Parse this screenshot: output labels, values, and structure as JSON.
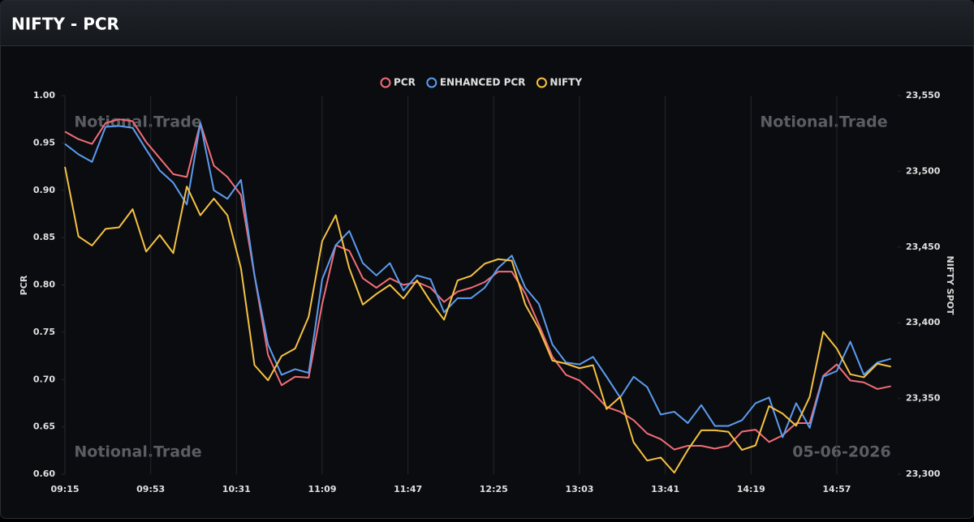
{
  "chart_data": {
    "type": "line",
    "title": "NIFTY - PCR",
    "ylabel": "PCR",
    "y2label": "NIFTY SPOT",
    "annotations": [
      "Notional.Trade",
      "Notional.Trade",
      "Notional.Trade",
      "05-06-2026"
    ],
    "x": [
      "09:15",
      "09:21",
      "09:27",
      "09:33",
      "09:39",
      "09:45",
      "09:51",
      "09:57",
      "10:03",
      "10:09",
      "10:15",
      "10:21",
      "10:27",
      "10:33",
      "10:39",
      "10:45",
      "10:51",
      "10:57",
      "11:03",
      "11:09",
      "11:15",
      "11:21",
      "11:27",
      "11:33",
      "11:39",
      "11:45",
      "11:51",
      "11:57",
      "12:03",
      "12:09",
      "12:15",
      "12:21",
      "12:27",
      "12:33",
      "12:39",
      "12:45",
      "12:51",
      "12:57",
      "13:03",
      "13:09",
      "13:15",
      "13:21",
      "13:27",
      "13:33",
      "13:39",
      "13:45",
      "13:51",
      "13:57",
      "14:03",
      "14:09",
      "14:15",
      "14:21",
      "14:27",
      "14:33",
      "14:39",
      "14:45",
      "14:51",
      "14:57",
      "15:03",
      "15:09",
      "15:15",
      "15:21"
    ],
    "xlim": [
      "09:15",
      "15:24"
    ],
    "xticks": [
      "09:15",
      "09:53",
      "10:31",
      "11:09",
      "11:47",
      "12:25",
      "13:03",
      "13:41",
      "14:19",
      "14:57"
    ],
    "ylim": [
      0.6,
      1.0
    ],
    "yticks": [
      {
        "value": 0.6,
        "label": "0.60"
      },
      0.65,
      {
        "value": 0.7,
        "label": "0.70"
      },
      0.75,
      {
        "value": 0.8,
        "label": "0.80"
      },
      0.85,
      {
        "value": 0.9,
        "label": "0.90"
      },
      0.95,
      {
        "value": 1.0,
        "label": "1.00"
      }
    ],
    "y2lim": [
      23300,
      23550
    ],
    "y2ticks": [
      {
        "value": 23300,
        "label": "23,300"
      },
      {
        "value": 23350,
        "label": "23,350"
      },
      {
        "value": 23400,
        "label": "23,400"
      },
      {
        "value": 23450,
        "label": "23,450"
      },
      {
        "value": 23500,
        "label": "23,500"
      },
      {
        "value": 23550,
        "label": "23,550"
      }
    ],
    "grid": "x",
    "legend": "top",
    "series": [
      {
        "name": "PCR",
        "color": "#f26d78",
        "values": [
          0.962,
          0.954,
          0.949,
          0.971,
          0.975,
          0.973,
          0.951,
          0.934,
          0.917,
          0.914,
          0.971,
          0.926,
          0.914,
          0.895,
          0.81,
          0.726,
          0.694,
          0.703,
          0.702,
          0.78,
          0.842,
          0.836,
          0.807,
          0.797,
          0.807,
          0.8,
          0.803,
          0.797,
          0.782,
          0.793,
          0.797,
          0.803,
          0.814,
          0.814,
          0.791,
          0.758,
          0.724,
          0.705,
          0.699,
          0.686,
          0.671,
          0.666,
          0.657,
          0.643,
          0.637,
          0.626,
          0.63,
          0.63,
          0.627,
          0.63,
          0.645,
          0.647,
          0.634,
          0.641,
          0.654,
          0.654,
          0.704,
          0.716,
          0.699,
          0.697,
          0.69,
          0.693
        ]
      },
      {
        "name": "ENHANCED PCR",
        "color": "#5b9cf0",
        "values": [
          0.949,
          0.938,
          0.93,
          0.967,
          0.968,
          0.966,
          0.943,
          0.921,
          0.908,
          0.885,
          0.971,
          0.9,
          0.891,
          0.911,
          0.81,
          0.737,
          0.705,
          0.711,
          0.707,
          0.806,
          0.842,
          0.857,
          0.823,
          0.81,
          0.823,
          0.794,
          0.81,
          0.806,
          0.771,
          0.786,
          0.786,
          0.797,
          0.818,
          0.831,
          0.797,
          0.78,
          0.737,
          0.718,
          0.716,
          0.724,
          0.703,
          0.681,
          0.703,
          0.692,
          0.663,
          0.666,
          0.654,
          0.673,
          0.651,
          0.651,
          0.657,
          0.675,
          0.681,
          0.639,
          0.675,
          0.649,
          0.703,
          0.709,
          0.74,
          0.705,
          0.718,
          0.722
        ]
      },
      {
        "name": "NIFTY",
        "color": "#f5c242",
        "axis": "y2",
        "values": [
          23503,
          23457,
          23451,
          23462,
          23463,
          23475,
          23447,
          23458,
          23446,
          23490,
          23471,
          23482,
          23471,
          23436,
          23372,
          23362,
          23378,
          23383,
          23404,
          23454,
          23471,
          23436,
          23412,
          23419,
          23425,
          23416,
          23428,
          23414,
          23402,
          23428,
          23431,
          23439,
          23442,
          23441,
          23412,
          23396,
          23375,
          23373,
          23370,
          23372,
          23343,
          23351,
          23321,
          23309,
          23311,
          23301,
          23316,
          23329,
          23329,
          23328,
          23316,
          23319,
          23345,
          23340,
          23332,
          23351,
          23394,
          23383,
          23366,
          23364,
          23373,
          23371
        ]
      }
    ]
  }
}
